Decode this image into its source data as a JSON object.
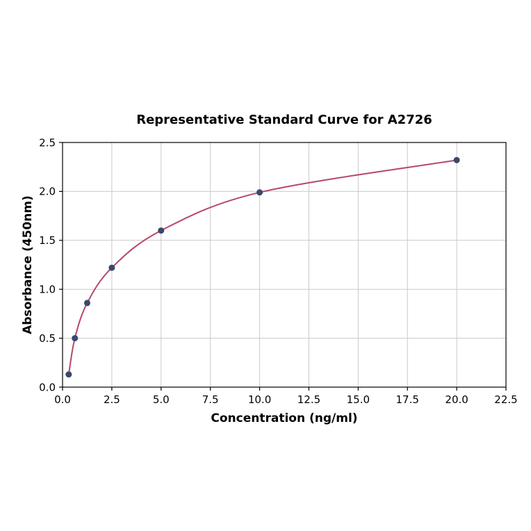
{
  "chart_data": {
    "type": "scatter",
    "title": "Representative Standard Curve for A2726",
    "xlabel": "Concentration (ng/ml)",
    "ylabel": "Absorbance (450nm)",
    "x": [
      0.3125,
      0.625,
      1.25,
      2.5,
      5,
      10,
      20
    ],
    "y": [
      0.13,
      0.5,
      0.86,
      1.22,
      1.6,
      1.99,
      2.32
    ],
    "x_ticks": [
      0,
      2.5,
      5,
      7.5,
      10,
      12.5,
      15,
      17.5,
      20,
      22.5
    ],
    "x_tick_labels": [
      "0.0",
      "2.5",
      "5.0",
      "7.5",
      "10.0",
      "12.5",
      "15.0",
      "17.5",
      "20.0",
      "22.5"
    ],
    "y_ticks": [
      0,
      0.5,
      1,
      1.5,
      2,
      2.5
    ],
    "y_tick_labels": [
      "0.0",
      "0.5",
      "1.0",
      "1.5",
      "2.0",
      "2.5"
    ],
    "xlim": [
      0,
      22.5
    ],
    "ylim": [
      0,
      2.5
    ],
    "grid": true,
    "legend": "none",
    "colors": {
      "curve": "#b5476b",
      "point": "#39496b",
      "grid": "#c9c9c9",
      "frame": "#000000",
      "background": "#ffffff"
    }
  }
}
